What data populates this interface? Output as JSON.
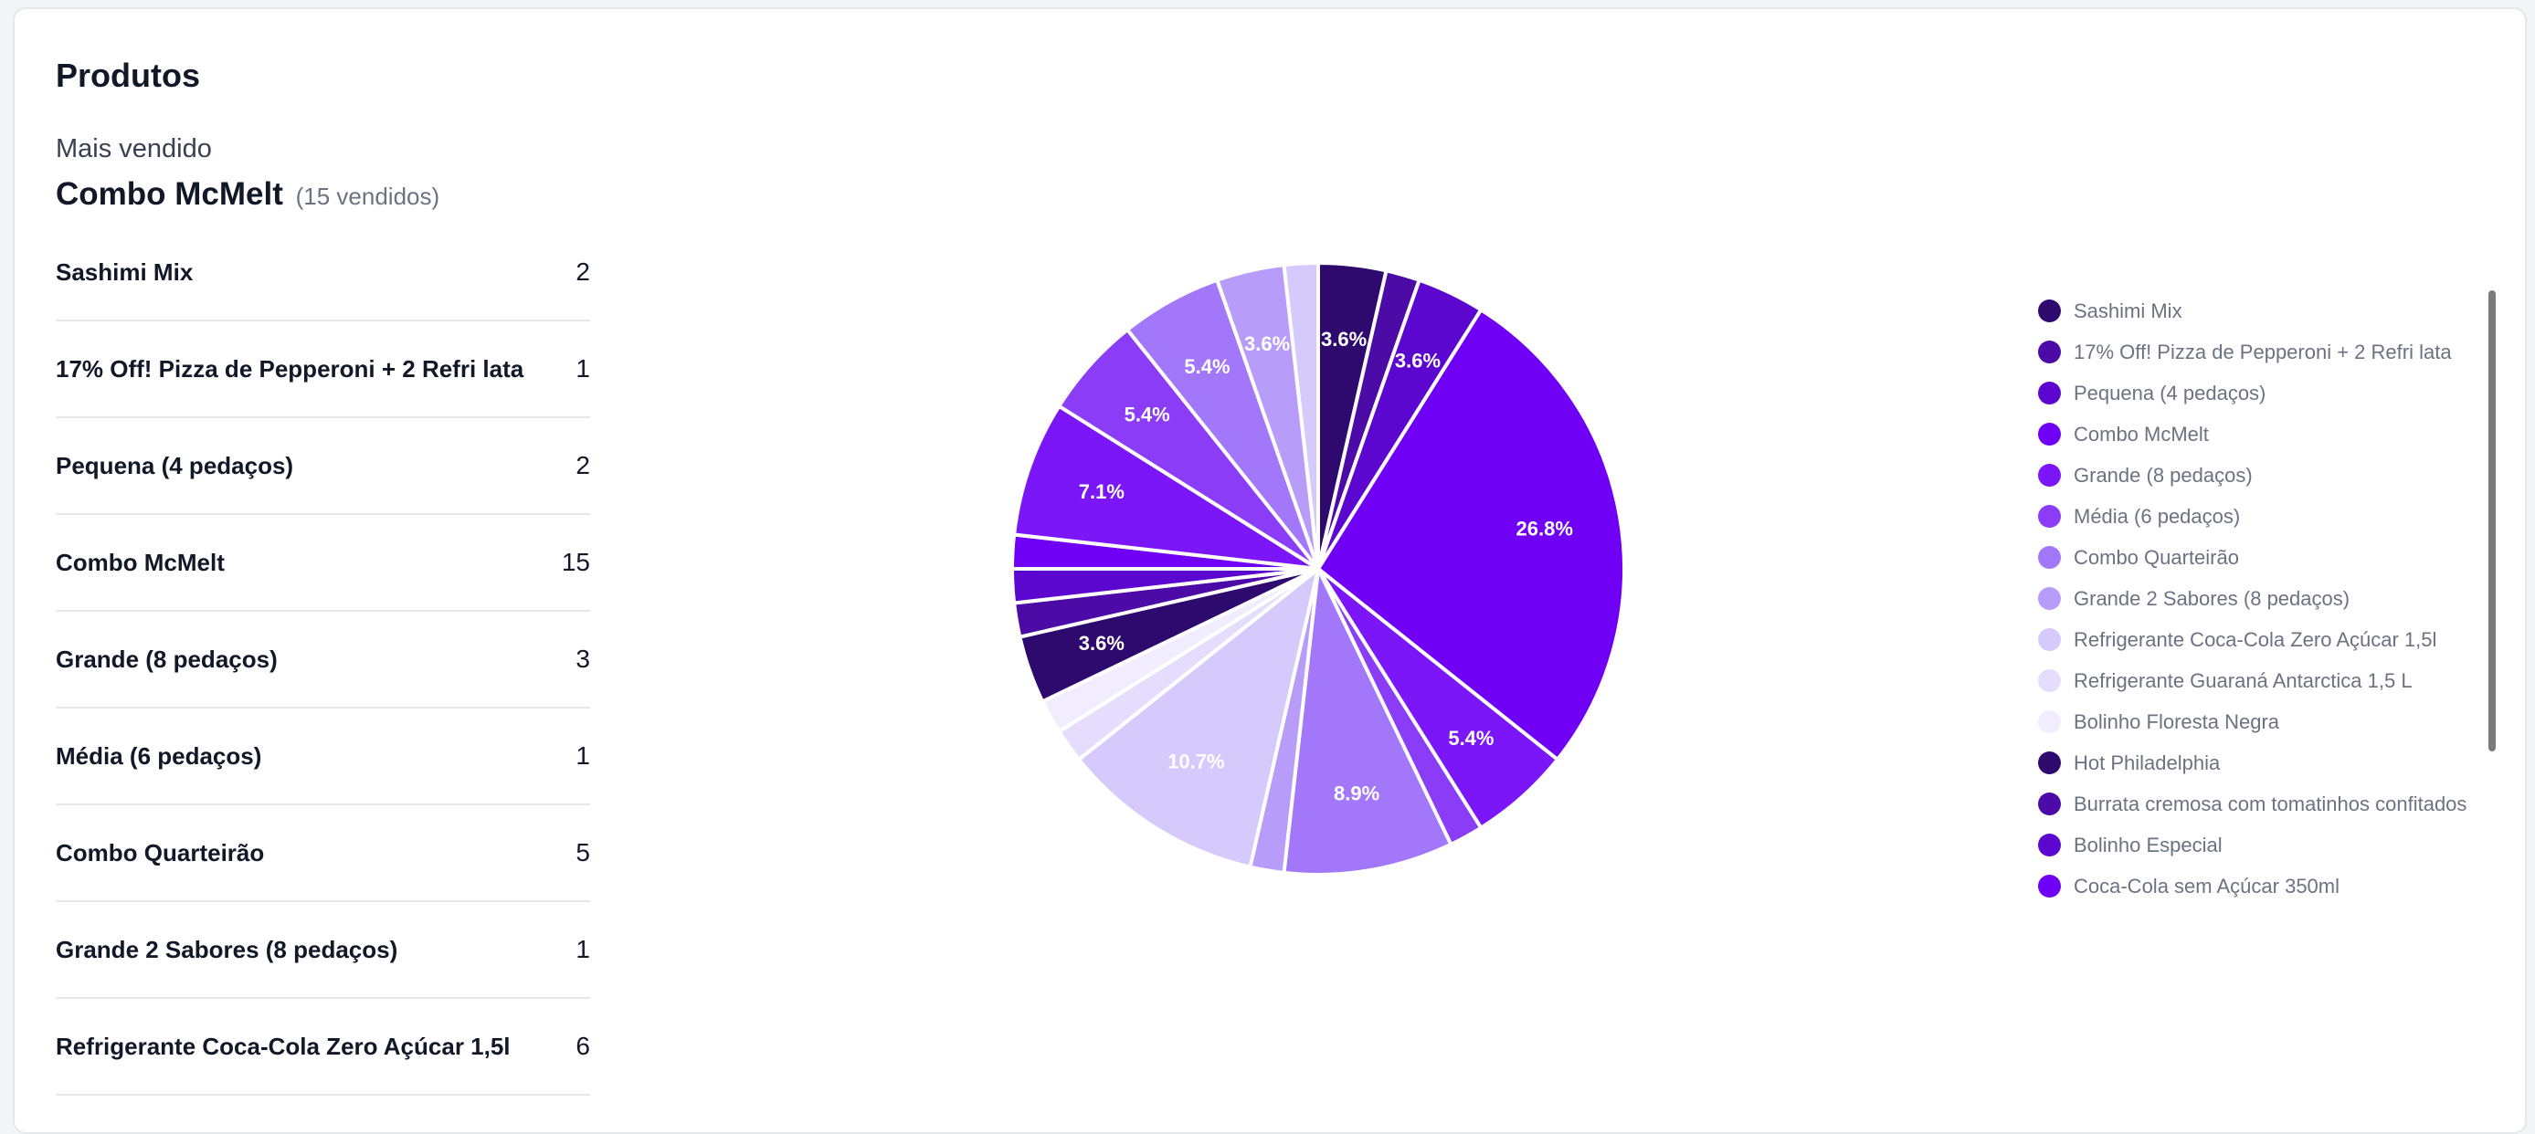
{
  "header": {
    "title": "Produtos",
    "subtitle": "Mais vendido",
    "best_name": "Combo McMelt",
    "best_count": "(15 vendidos)"
  },
  "products": [
    {
      "name": "Sashimi Mix",
      "qty": "2"
    },
    {
      "name": "17% Off! Pizza de Pepperoni + 2 Refri lata",
      "qty": "1"
    },
    {
      "name": "Pequena (4 pedaços)",
      "qty": "2"
    },
    {
      "name": "Combo McMelt",
      "qty": "15"
    },
    {
      "name": "Grande (8 pedaços)",
      "qty": "3"
    },
    {
      "name": "Média (6 pedaços)",
      "qty": "1"
    },
    {
      "name": "Combo Quarteirão",
      "qty": "5"
    },
    {
      "name": "Grande 2 Sabores (8 pedaços)",
      "qty": "1"
    },
    {
      "name": "Refrigerante Coca-Cola Zero Açúcar 1,5l",
      "qty": "6"
    }
  ],
  "chart_data": {
    "type": "pie",
    "start_angle_deg": -90,
    "slices": [
      {
        "name": "Sashimi Mix",
        "value": 2,
        "label": "3.6%",
        "color": "#2e0a6f"
      },
      {
        "name": "17% Off! Pizza de Pepperoni + 2 Refri lata",
        "value": 1,
        "label": "",
        "color": "#4c0aa6"
      },
      {
        "name": "Pequena (4 pedaços)",
        "value": 2,
        "label": "3.6%",
        "color": "#5c07cf"
      },
      {
        "name": "Combo McMelt",
        "value": 15,
        "label": "26.8%",
        "color": "#7000f5"
      },
      {
        "name": "Grande (8 pedaços)",
        "value": 3,
        "label": "5.4%",
        "color": "#7a16f7"
      },
      {
        "name": "Média (6 pedaços)",
        "value": 1,
        "label": "",
        "color": "#8b3cf6"
      },
      {
        "name": "Combo Quarteirão",
        "value": 5,
        "label": "8.9%",
        "color": "#a277fa"
      },
      {
        "name": "Grande 2 Sabores (8 pedaços)",
        "value": 1,
        "label": "",
        "color": "#b89cfa"
      },
      {
        "name": "Refrigerante Coca-Cola Zero Açúcar 1,5l",
        "value": 6,
        "label": "10.7%",
        "color": "#d6cafd"
      },
      {
        "name": "Refrigerante Guaraná Antarctica 1,5 L",
        "value": 1,
        "label": "",
        "color": "#e6ddfe"
      },
      {
        "name": "Bolinho Floresta Negra",
        "value": 1,
        "label": "",
        "color": "#f1ecfe"
      },
      {
        "name": "Hot Philadelphia",
        "value": 2,
        "label": "3.6%",
        "color": "#2e0a6f"
      },
      {
        "name": "Burrata cremosa com tomatinhos confitados",
        "value": 1,
        "label": "",
        "color": "#4c0aa6"
      },
      {
        "name": "Bolinho Especial",
        "value": 1,
        "label": "",
        "color": "#5c07cf"
      },
      {
        "name": "Coca-Cola sem Açúcar 350ml",
        "value": 1,
        "label": "",
        "color": "#7000f5"
      },
      {
        "name": "",
        "value": 4,
        "label": "7.1%",
        "color": "#7a16f7"
      },
      {
        "name": "",
        "value": 3,
        "label": "5.4%",
        "color": "#8b3cf6"
      },
      {
        "name": "",
        "value": 3,
        "label": "5.4%",
        "color": "#a277fa"
      },
      {
        "name": "",
        "value": 2,
        "label": "3.6%",
        "color": "#b89cfa"
      },
      {
        "name": "",
        "value": 1,
        "label": "",
        "color": "#d6cafd"
      }
    ],
    "legend": [
      {
        "name": "Sashimi Mix",
        "color": "#2e0a6f"
      },
      {
        "name": "17% Off! Pizza de Pepperoni + 2 Refri lata",
        "color": "#4c0aa6"
      },
      {
        "name": "Pequena (4 pedaços)",
        "color": "#5c07cf"
      },
      {
        "name": "Combo McMelt",
        "color": "#7000f5"
      },
      {
        "name": "Grande (8 pedaços)",
        "color": "#7a16f7"
      },
      {
        "name": "Média (6 pedaços)",
        "color": "#8b3cf6"
      },
      {
        "name": "Combo Quarteirão",
        "color": "#a277fa"
      },
      {
        "name": "Grande 2 Sabores (8 pedaços)",
        "color": "#b89cfa"
      },
      {
        "name": "Refrigerante Coca-Cola Zero Açúcar 1,5l",
        "color": "#d6cafd"
      },
      {
        "name": "Refrigerante Guaraná Antarctica 1,5 L",
        "color": "#e6ddfe"
      },
      {
        "name": "Bolinho Floresta Negra",
        "color": "#f1ecfe"
      },
      {
        "name": "Hot Philadelphia",
        "color": "#2e0a6f"
      },
      {
        "name": "Burrata cremosa com tomatinhos confitados",
        "color": "#4c0aa6"
      },
      {
        "name": "Bolinho Especial",
        "color": "#5c07cf"
      },
      {
        "name": "Coca-Cola sem Açúcar 350ml",
        "color": "#7000f5"
      }
    ],
    "legend_placement": "right"
  }
}
